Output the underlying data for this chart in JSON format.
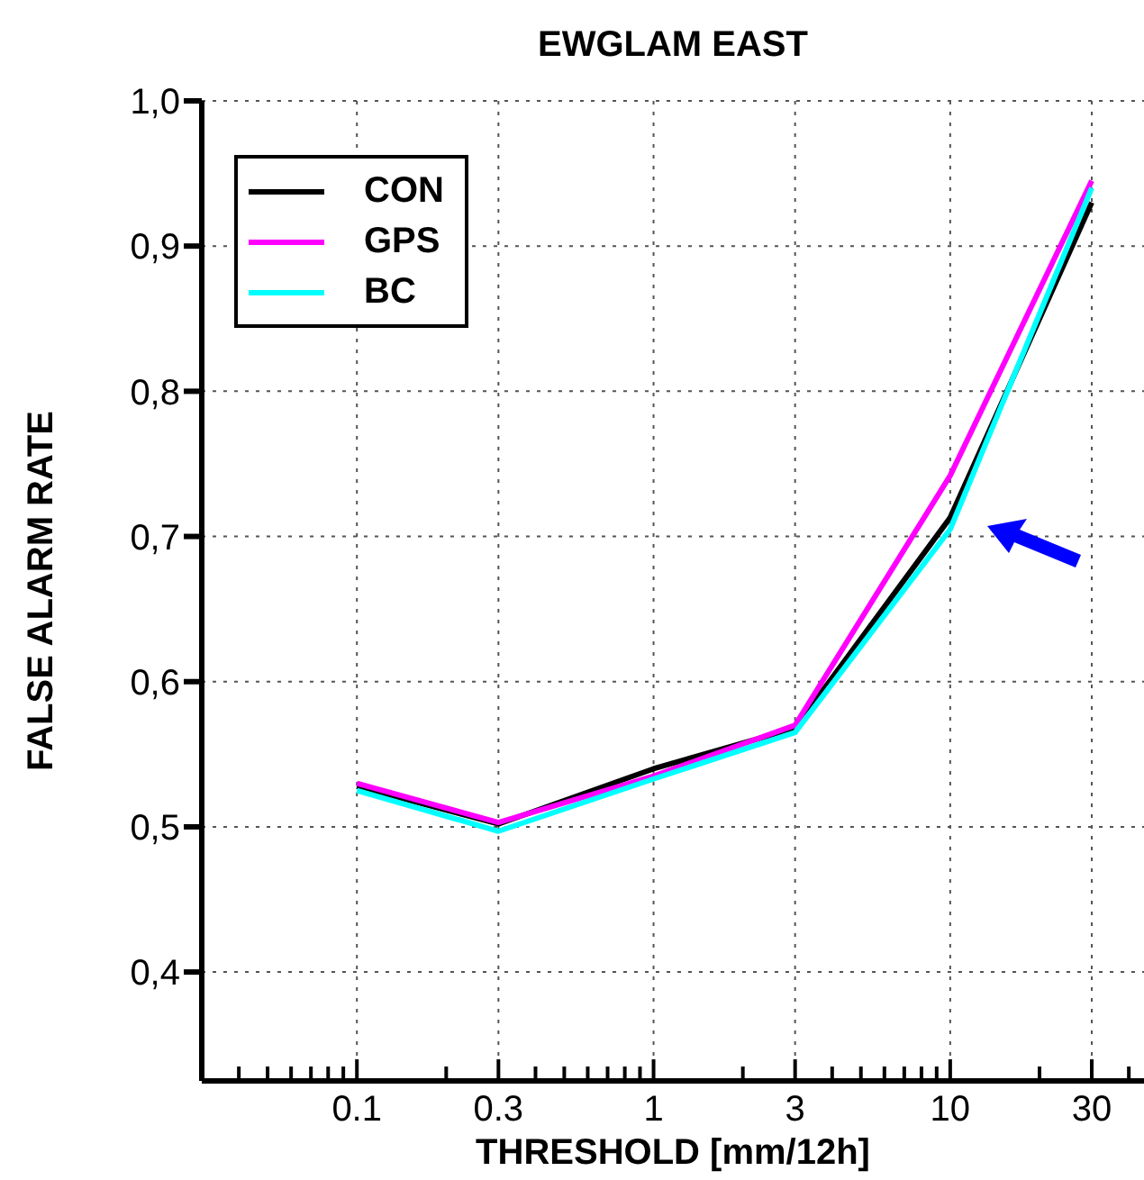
{
  "chart_data": {
    "type": "line",
    "title": "EWGLAM EAST",
    "xlabel": "THRESHOLD [mm/12h]",
    "ylabel": "FALSE ALARM RATE",
    "x": [
      0.1,
      0.3,
      1,
      3,
      10,
      30
    ],
    "series": [
      {
        "name": "CON",
        "color": "#000000",
        "values": [
          0.528,
          0.502,
          0.54,
          0.568,
          0.713,
          0.93
        ]
      },
      {
        "name": "GPS",
        "color": "#ff00ff",
        "values": [
          0.53,
          0.503,
          0.535,
          0.57,
          0.742,
          0.945
        ]
      },
      {
        "name": "BC",
        "color": "#00ffff",
        "values": [
          0.525,
          0.497,
          0.533,
          0.565,
          0.705,
          0.94
        ]
      }
    ],
    "log": "x",
    "xlim": [
      0.03,
      45
    ],
    "xticks": [
      {
        "value": 0.04,
        "label": null
      },
      {
        "value": 0.05,
        "label": null
      },
      {
        "value": 0.06,
        "label": null
      },
      {
        "value": 0.07,
        "label": null
      },
      {
        "value": 0.08,
        "label": null
      },
      {
        "value": 0.09,
        "label": null
      },
      {
        "value": 0.1,
        "label": "0.1"
      },
      {
        "value": 0.2,
        "label": null
      },
      {
        "value": 0.3,
        "label": "0.3"
      },
      {
        "value": 0.4,
        "label": null
      },
      {
        "value": 0.5,
        "label": null
      },
      {
        "value": 0.6,
        "label": null
      },
      {
        "value": 0.7,
        "label": null
      },
      {
        "value": 0.8,
        "label": null
      },
      {
        "value": 0.9,
        "label": null
      },
      {
        "value": 1,
        "label": "1"
      },
      {
        "value": 2,
        "label": null
      },
      {
        "value": 3,
        "label": "3"
      },
      {
        "value": 4,
        "label": null
      },
      {
        "value": 5,
        "label": null
      },
      {
        "value": 6,
        "label": null
      },
      {
        "value": 7,
        "label": null
      },
      {
        "value": 8,
        "label": null
      },
      {
        "value": 9,
        "label": null
      },
      {
        "value": 10,
        "label": "10"
      },
      {
        "value": 20,
        "label": null
      },
      {
        "value": 30,
        "label": "30"
      },
      {
        "value": 40,
        "label": null
      }
    ],
    "ylim": [
      0.325,
      1.0
    ],
    "yticks": [
      {
        "value": 0.4,
        "label": "0,4"
      },
      {
        "value": 0.5,
        "label": "0,5"
      },
      {
        "value": 0.6,
        "label": "0,6"
      },
      {
        "value": 0.7,
        "label": "0,7"
      },
      {
        "value": 0.8,
        "label": "0,8"
      },
      {
        "value": 0.9,
        "label": "0,9"
      },
      {
        "value": 1.0,
        "label": "1,0"
      }
    ],
    "grid": true,
    "legend": "top left",
    "marker": "none",
    "line_style": "solid"
  }
}
